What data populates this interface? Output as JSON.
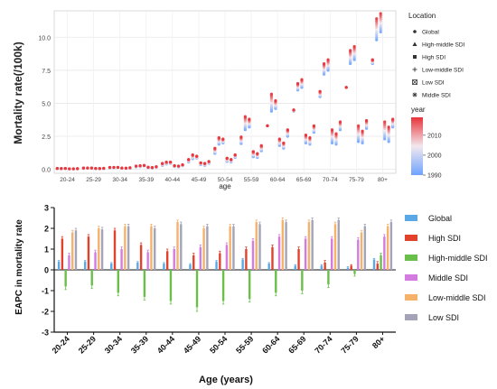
{
  "chart_data": [
    {
      "type": "scatter",
      "title": "",
      "xlabel": "age",
      "ylabel": "Mortality rate(/100k)",
      "categories": [
        "20-24",
        "25-29",
        "30-34",
        "35-39",
        "40-44",
        "45-49",
        "50-54",
        "55-59",
        "60-64",
        "65-69",
        "70-74",
        "75-79",
        "80+"
      ],
      "yticks": [
        0.0,
        2.5,
        5.0,
        7.5,
        10.0
      ],
      "ytick_labels": [
        "0.0",
        "2.5",
        "5.0",
        "7.5",
        "10.0"
      ],
      "ylim": [
        -0.3,
        12
      ],
      "grid": true,
      "legend_location": {
        "title": "Location",
        "placement": "right",
        "items": [
          {
            "label": "Global",
            "icon": "circle-marker-icon"
          },
          {
            "label": "High-middle SDI",
            "icon": "triangle-marker-icon"
          },
          {
            "label": "High SDI",
            "icon": "square-marker-icon"
          },
          {
            "label": "Low-middle SDI",
            "icon": "plus-marker-icon"
          },
          {
            "label": "Low SDI",
            "icon": "boxed-x-marker-icon"
          },
          {
            "label": "Middle SDI",
            "icon": "star-marker-icon"
          }
        ]
      },
      "legend_year": {
        "title": "year",
        "placement": "right",
        "ticks": [
          "2010",
          "2000",
          "1990"
        ],
        "range": [
          1990,
          2019
        ],
        "colors": {
          "low": "#6fa3ff",
          "mid": "#f2e8ee",
          "high": "#e8333a"
        }
      },
      "series": [
        {
          "name": "Global",
          "values_1990": [
            0.05,
            0.07,
            0.1,
            0.18,
            0.3,
            0.55,
            1.2,
            1.95,
            3.3,
            4.4,
            5.5,
            6.2,
            8.0
          ],
          "values_2019": [
            0.07,
            0.1,
            0.15,
            0.25,
            0.45,
            0.75,
            1.6,
            2.45,
            3.3,
            4.5,
            5.9,
            6.2,
            8.3
          ]
        },
        {
          "name": "High-middle SDI",
          "values_1990": [
            0.05,
            0.08,
            0.12,
            0.2,
            0.4,
            0.8,
            1.9,
            3.0,
            4.4,
            6.0,
            7.2,
            8.0,
            9.8
          ],
          "values_2019": [
            0.06,
            0.1,
            0.15,
            0.28,
            0.55,
            1.1,
            2.4,
            4.0,
            5.7,
            6.5,
            8.0,
            9.0,
            11.4
          ]
        },
        {
          "name": "High SDI",
          "values_1990": [
            0.06,
            0.09,
            0.14,
            0.25,
            0.45,
            0.85,
            2.0,
            3.2,
            4.6,
            6.2,
            7.5,
            8.3,
            10.4
          ],
          "values_2019": [
            0.07,
            0.1,
            0.15,
            0.3,
            0.55,
            1.0,
            2.3,
            3.8,
            5.2,
            6.8,
            8.3,
            9.3,
            11.8
          ]
        },
        {
          "name": "Low-middle SDI",
          "values_1990": [
            0.03,
            0.05,
            0.08,
            0.12,
            0.22,
            0.35,
            0.6,
            0.95,
            1.8,
            2.0,
            2.0,
            2.1,
            2.3
          ],
          "values_2019": [
            0.04,
            0.07,
            0.1,
            0.16,
            0.28,
            0.5,
            0.85,
            1.35,
            2.3,
            2.6,
            3.0,
            3.3,
            3.6
          ]
        },
        {
          "name": "Low SDI",
          "values_1990": [
            0.03,
            0.05,
            0.07,
            0.1,
            0.18,
            0.3,
            0.55,
            0.9,
            1.6,
            1.9,
            1.9,
            2.0,
            2.1
          ],
          "values_2019": [
            0.04,
            0.06,
            0.09,
            0.14,
            0.25,
            0.45,
            0.75,
            1.2,
            2.0,
            2.4,
            2.7,
            2.9,
            3.2
          ]
        },
        {
          "name": "Middle SDI",
          "values_1990": [
            0.04,
            0.06,
            0.09,
            0.15,
            0.27,
            0.45,
            0.9,
            1.4,
            2.5,
            2.8,
            3.0,
            3.1,
            3.2
          ],
          "values_2019": [
            0.05,
            0.08,
            0.12,
            0.2,
            0.35,
            0.6,
            1.1,
            1.8,
            3.0,
            3.3,
            3.6,
            3.7,
            3.8
          ]
        }
      ]
    },
    {
      "type": "bar",
      "title": "",
      "xlabel": "Age (years)",
      "ylabel": "EAPC in mortality rate",
      "categories": [
        "20-24",
        "25-29",
        "30-34",
        "35-39",
        "40-44",
        "45-49",
        "50-54",
        "55-59",
        "60-64",
        "65-69",
        "70-74",
        "75-79",
        "80+"
      ],
      "yticks": [
        -3,
        -2,
        -1,
        0,
        1,
        2,
        3
      ],
      "ylim": [
        -3,
        3
      ],
      "grid": false,
      "legend_placement": "right",
      "series": [
        {
          "name": "Global",
          "color": "#5aa9e6",
          "values": [
            0.4,
            0.4,
            0.3,
            0.35,
            0.3,
            0.25,
            0.4,
            0.5,
            0.3,
            0.2,
            0.2,
            0.1,
            0.5
          ],
          "errors": [
            0.05,
            0.05,
            0.05,
            0.05,
            0.05,
            0.05,
            0.05,
            0.05,
            0.05,
            0.05,
            0.05,
            0.05,
            0.05
          ]
        },
        {
          "name": "High SDI",
          "color": "#e2412c",
          "values": [
            1.5,
            1.6,
            1.9,
            1.2,
            0.9,
            0.7,
            0.8,
            1.0,
            1.1,
            1.0,
            0.35,
            0.2,
            0.3
          ],
          "errors": [
            0.1,
            0.1,
            0.1,
            0.1,
            0.1,
            0.1,
            0.1,
            0.1,
            0.1,
            0.1,
            0.1,
            0.05,
            0.1
          ]
        },
        {
          "name": "High-middle SDI",
          "color": "#6abf4b",
          "values": [
            -0.8,
            -0.75,
            -1.1,
            -1.3,
            -1.5,
            -1.8,
            -1.5,
            -1.4,
            -1.1,
            -1.0,
            -0.7,
            -0.2,
            0.7
          ],
          "errors": [
            0.15,
            0.15,
            0.15,
            0.15,
            0.15,
            0.2,
            0.15,
            0.15,
            0.15,
            0.15,
            0.15,
            0.1,
            0.1
          ]
        },
        {
          "name": "Middle SDI",
          "color": "#d47be0",
          "values": [
            0.7,
            0.85,
            1.0,
            0.85,
            1.0,
            1.1,
            1.2,
            1.4,
            1.6,
            1.5,
            1.5,
            1.45,
            1.6
          ],
          "errors": [
            0.1,
            0.1,
            0.1,
            0.1,
            0.1,
            0.1,
            0.1,
            0.1,
            0.1,
            0.1,
            0.1,
            0.1,
            0.1
          ]
        },
        {
          "name": "Low-middle SDI",
          "color": "#f5b26b",
          "values": [
            1.8,
            2.0,
            2.1,
            2.1,
            2.3,
            2.0,
            2.1,
            2.3,
            2.4,
            2.3,
            2.2,
            1.8,
            2.1
          ],
          "errors": [
            0.1,
            0.1,
            0.1,
            0.1,
            0.1,
            0.1,
            0.1,
            0.1,
            0.1,
            0.1,
            0.1,
            0.1,
            0.1
          ]
        },
        {
          "name": "Low SDI",
          "color": "#a4a4b8",
          "values": [
            1.9,
            1.95,
            2.1,
            2.0,
            2.2,
            2.1,
            2.1,
            2.2,
            2.3,
            2.4,
            2.4,
            2.1,
            2.3
          ],
          "errors": [
            0.1,
            0.1,
            0.1,
            0.1,
            0.1,
            0.1,
            0.1,
            0.1,
            0.1,
            0.1,
            0.1,
            0.1,
            0.1
          ]
        }
      ]
    }
  ]
}
